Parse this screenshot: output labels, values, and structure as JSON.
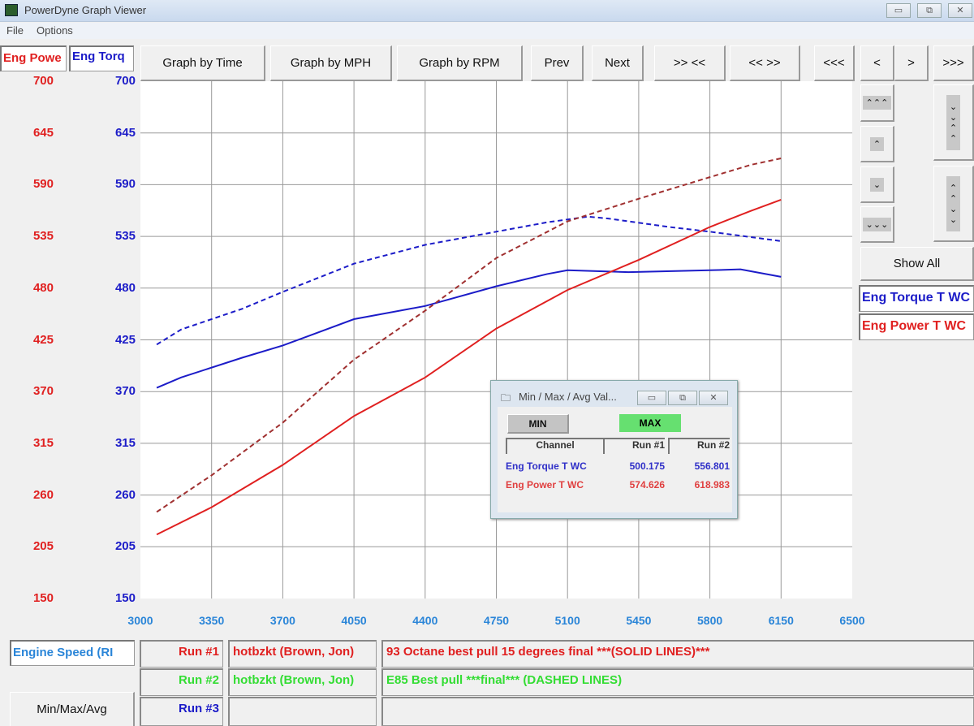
{
  "window": {
    "title": "PowerDyne Graph Viewer",
    "minimize": "▭",
    "restore": "⧉",
    "close": "✕"
  },
  "menu": [
    "File",
    "Options"
  ],
  "channels": {
    "power": "Eng Power T WC",
    "power_short": "Eng Powe",
    "torque_short": "Eng Torq",
    "torque": "Eng Torque T WC"
  },
  "toolbar": [
    "Graph by Time",
    "Graph by MPH",
    "Graph by RPM",
    "Prev",
    "Next",
    ">> <<",
    "<< >>",
    "<<<",
    "<",
    ">",
    ">>>"
  ],
  "side_buttons": {
    "up3": "⌃⌃⌃",
    "up": "⌃",
    "down": "⌄",
    "down3": "⌄⌄⌄",
    "compress": "⌄⌄⌃⌃",
    "expand": "⌃⌃⌄⌄",
    "show_all": "Show All"
  },
  "colors": {
    "power": "#e02020",
    "torque": "#1c1cc8",
    "run2": "#33dd33",
    "xaxis": "#2a85d8"
  },
  "chart_data": {
    "type": "line",
    "xlabel": "Engine Speed (RI",
    "xlim": [
      3000,
      6500
    ],
    "x_ticks": [
      "3000",
      "3350",
      "3700",
      "4050",
      "4400",
      "4750",
      "5100",
      "5450",
      "5800",
      "6150",
      "6500"
    ],
    "ylim_power": [
      150,
      700
    ],
    "ylim_torque": [
      150,
      700
    ],
    "y_ticks": [
      "700",
      "645",
      "590",
      "535",
      "480",
      "425",
      "370",
      "315",
      "260",
      "205",
      "150"
    ],
    "grid": true,
    "series": [
      {
        "name": "Eng Torque T WC",
        "run": "Run #1",
        "style": "solid",
        "color": "#1c1cc8",
        "x": [
          3080,
          3200,
          3500,
          3700,
          4050,
          4400,
          4750,
          5000,
          5100,
          5400,
          5800,
          5950,
          6150
        ],
        "y": [
          374,
          385,
          406,
          419,
          447,
          461,
          482,
          495,
          499,
          497,
          499,
          500,
          492
        ]
      },
      {
        "name": "Eng Torque T WC",
        "run": "Run #2",
        "style": "dashed",
        "color": "#1c1cc8",
        "x": [
          3080,
          3200,
          3500,
          3700,
          4050,
          4400,
          4750,
          5000,
          5200,
          5300,
          5600,
          5800,
          6150
        ],
        "y": [
          420,
          436,
          458,
          476,
          506,
          526,
          540,
          550,
          556,
          554,
          545,
          540,
          530
        ]
      },
      {
        "name": "Eng Power T WC",
        "run": "Run #1",
        "style": "solid",
        "color": "#e02020",
        "x": [
          3080,
          3350,
          3700,
          4050,
          4400,
          4750,
          5100,
          5450,
          5800,
          6000,
          6150
        ],
        "y": [
          218,
          247,
          292,
          344,
          385,
          437,
          478,
          510,
          545,
          562,
          574
        ]
      },
      {
        "name": "Eng Power T WC",
        "run": "Run #2",
        "style": "dashed",
        "color": "#a03030",
        "x": [
          3080,
          3350,
          3700,
          4050,
          4400,
          4750,
          5100,
          5450,
          5800,
          6000,
          6150
        ],
        "y": [
          242,
          281,
          337,
          404,
          456,
          512,
          551,
          575,
          598,
          611,
          618
        ]
      }
    ]
  },
  "popup": {
    "title": "Min / Max / Avg Val...",
    "min": "MIN",
    "max": "MAX",
    "headers": [
      "Channel",
      "Run #1",
      "Run #2"
    ],
    "rows": [
      {
        "channel": "Eng Torque T WC",
        "run1": "500.175",
        "run2": "556.801"
      },
      {
        "channel": "Eng Power T WC",
        "run1": "574.626",
        "run2": "618.983"
      }
    ]
  },
  "bottom": {
    "axis_channel": "Engine Speed (RI",
    "tab": "Min/Max/Avg",
    "runs": [
      {
        "label": "Run #1",
        "user": "hotbzkt (Brown, Jon)",
        "desc": "93 Octane best pull 15 degrees final ***(SOLID LINES)***"
      },
      {
        "label": "Run #2",
        "user": "hotbzkt (Brown, Jon)",
        "desc": "E85 Best pull  ***final*** (DASHED LINES)"
      },
      {
        "label": "Run #3",
        "user": "",
        "desc": ""
      }
    ]
  }
}
